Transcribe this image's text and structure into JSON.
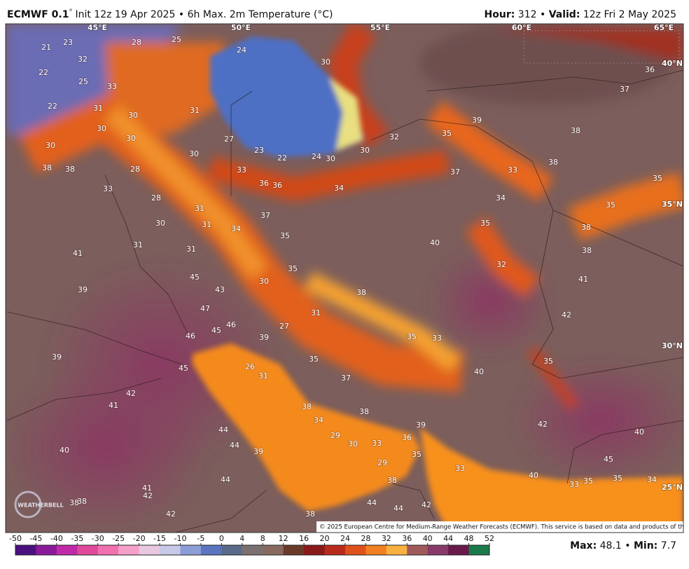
{
  "header": {
    "model": "ECMWF 0.1",
    "degree": "°",
    "description": "Init 12z 19 Apr 2025 • 6h Max. 2m Temperature (°C)",
    "hour_label": "Hour:",
    "hour": 312,
    "separator": "•",
    "valid_label": "Valid:",
    "valid": "12z Fri 2 May 2025"
  },
  "map": {
    "longitudes": [
      "45°E",
      "50°E",
      "55°E",
      "60°E",
      "65°E"
    ],
    "latitudes": [
      "40°N",
      "35°N",
      "30°N",
      "25°N"
    ],
    "labels": [
      21,
      23,
      28,
      25,
      24,
      32,
      22,
      25,
      33,
      30,
      36,
      37,
      22,
      31,
      30,
      31,
      30,
      30,
      39,
      38,
      32,
      35,
      30,
      30,
      27,
      23,
      22,
      24,
      30,
      30,
      38,
      38,
      28,
      33,
      37,
      33,
      38,
      36,
      36,
      34,
      33,
      35,
      28,
      34,
      35,
      31,
      37,
      30,
      31,
      34,
      35,
      38,
      35,
      31,
      31,
      40,
      38,
      41,
      32,
      35,
      45,
      30,
      41,
      39,
      43,
      38,
      47,
      31,
      42,
      27,
      45,
      46,
      46,
      39,
      35,
      33,
      39,
      35,
      26,
      45,
      31,
      37,
      40,
      35,
      42,
      41,
      38,
      38,
      34,
      39,
      42,
      40,
      44,
      29,
      30,
      33,
      36,
      44,
      39,
      40,
      35,
      29,
      45,
      33,
      44,
      40,
      38,
      35,
      35,
      33,
      34,
      41,
      42,
      38,
      38,
      44,
      44,
      42,
      42,
      38
    ],
    "copyright": "© 2025 European Centre for Medium-Range Weather Forecasts (ECMWF). This service is based on data and products of the ECMWF.",
    "logo": "WEATHERBELL"
  },
  "colorbar": {
    "ticks": [
      -50,
      -45,
      -40,
      -35,
      -30,
      -25,
      -20,
      -15,
      -10,
      -5,
      0,
      4,
      8,
      12,
      16,
      20,
      24,
      28,
      32,
      36,
      40,
      44,
      48,
      52
    ],
    "colors": [
      "#4a1080",
      "#8a1a9a",
      "#c02aa8",
      "#e0489a",
      "#f070b0",
      "#f4a0c8",
      "#e8c8e0",
      "#c8c8e8",
      "#8c9ed8",
      "#5a74c0",
      "#5a6a8a",
      "#7a7070",
      "#8a6a60",
      "#6a3a2a",
      "#8a1a1a",
      "#b82a1a",
      "#e0501a",
      "#f08020",
      "#f8b040",
      "#a05a5a",
      "#8a3a6a",
      "#6a1a4a",
      "#1a7a4a"
    ]
  },
  "stats": {
    "max_label": "Max:",
    "max": 48.1,
    "separator": "•",
    "min_label": "Min:",
    "min": 7.7
  }
}
